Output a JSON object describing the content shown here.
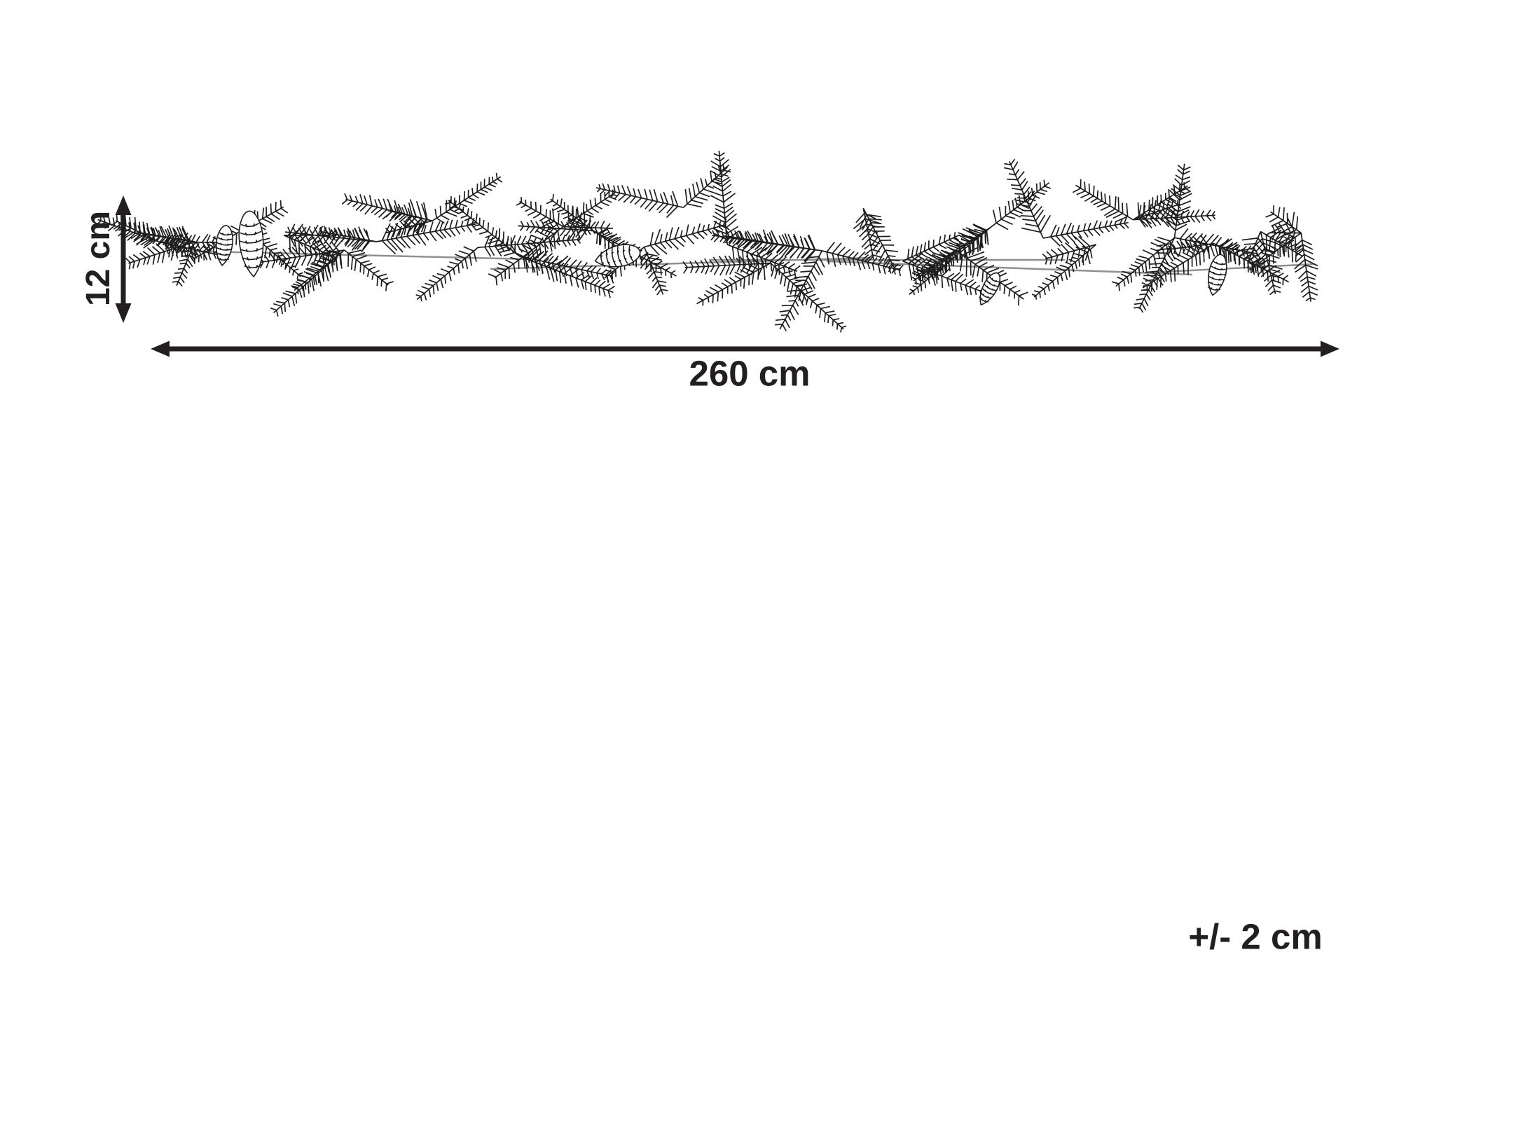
{
  "diagram": {
    "illustration": "pine-garland-with-cones",
    "labels": {
      "height": "12 cm",
      "width": "260 cm",
      "tolerance": "+/- 2 cm"
    },
    "colors": {
      "ink": "#231f20",
      "line_art": "#1d1d1d",
      "wire": "#909090",
      "background": "#ffffff"
    }
  }
}
